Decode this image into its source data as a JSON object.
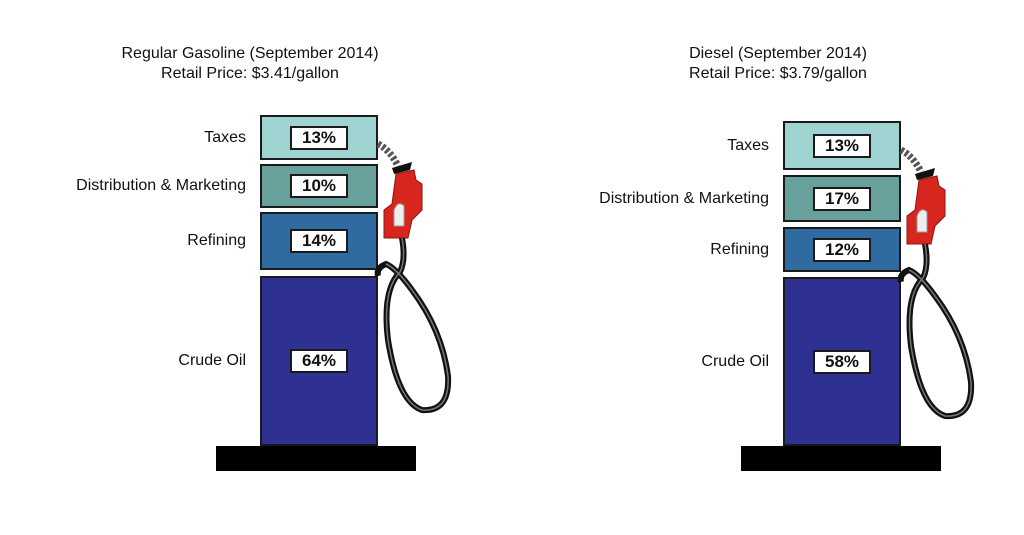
{
  "chart_data": {
    "type": "stacked-bar",
    "grid": false,
    "charts": [
      {
        "title": "Regular Gasoline (September 2014)",
        "subtitle": "Retail Price: $3.41/gallon",
        "segments": [
          {
            "label": "Taxes",
            "value": 13,
            "value_label": "13%",
            "color": "#9fd3d2"
          },
          {
            "label": "Distribution & Marketing",
            "value": 10,
            "value_label": "10%",
            "color": "#68a09c"
          },
          {
            "label": "Refining",
            "value": 14,
            "value_label": "14%",
            "color": "#2f6aa1"
          },
          {
            "label": "Crude Oil",
            "value": 64,
            "value_label": "64%",
            "color": "#2e3192"
          }
        ]
      },
      {
        "title": "Diesel (September 2014)",
        "subtitle": "Retail Price: $3.79/gallon",
        "segments": [
          {
            "label": "Taxes",
            "value": 13,
            "value_label": "13%",
            "color": "#9fd3d2"
          },
          {
            "label": "Distribution & Marketing",
            "value": 17,
            "value_label": "17%",
            "color": "#68a09c"
          },
          {
            "label": "Refining",
            "value": 12,
            "value_label": "12%",
            "color": "#2f6aa1"
          },
          {
            "label": "Crude Oil",
            "value": 58,
            "value_label": "58%",
            "color": "#2e3192"
          }
        ]
      }
    ]
  }
}
